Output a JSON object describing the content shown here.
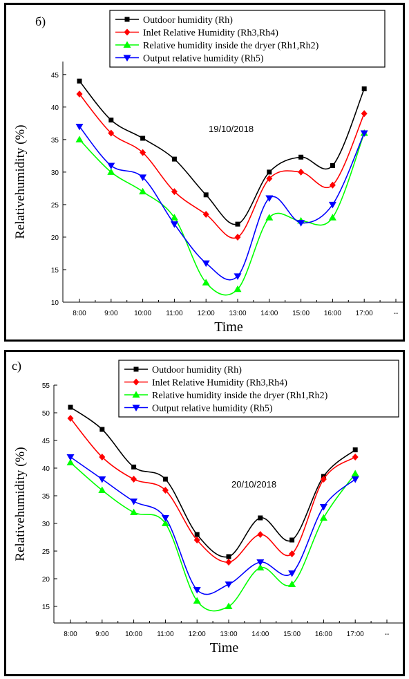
{
  "panels": [
    {
      "panel_label": "б)",
      "annotation": "19/10/2018",
      "ylabel": "Relativehumidity (%)",
      "xlabel": "Time",
      "ylim": [
        10,
        47
      ],
      "yticks": [
        10,
        15,
        20,
        25,
        30,
        35,
        40,
        45
      ],
      "xticks": [
        "8:00",
        "9:00",
        "10:00",
        "11:00",
        "12:00",
        "13:00",
        "14:00",
        "15:00",
        "16:00",
        "17:00",
        "--"
      ]
    },
    {
      "panel_label": "c)",
      "annotation": "20/10/2018",
      "ylabel": "Relativehumidity (%)",
      "xlabel": "Time",
      "ylim": [
        12,
        55
      ],
      "yticks": [
        15,
        20,
        25,
        30,
        35,
        40,
        45,
        50,
        55
      ],
      "xticks": [
        "8:00",
        "9:00",
        "10:00",
        "11:00",
        "12:00",
        "13:00",
        "14:00",
        "15:00",
        "16:00",
        "17:00",
        "--"
      ]
    }
  ],
  "legend": [
    {
      "name": "Outdoor humidity (Rh)",
      "color": "#000000",
      "marker": "square"
    },
    {
      "name": "Inlet Relative Humidity (Rh3,Rh4)",
      "color": "#ff0000",
      "marker": "diamond"
    },
    {
      "name": "Relative humidity inside the dryer (Rh1,Rh2)",
      "color": "#00ff00",
      "marker": "triangle-up"
    },
    {
      "name": "Output relative humidity (Rh5)",
      "color": "#0000ff",
      "marker": "triangle-down"
    }
  ],
  "chart_data": [
    {
      "type": "line",
      "title": "19/10/2018",
      "xlabel": "Time",
      "ylabel": "Relativehumidity (%)",
      "categories": [
        "8:00",
        "9:00",
        "10:00",
        "11:00",
        "12:00",
        "13:00",
        "14:00",
        "15:00",
        "16:00",
        "17:00"
      ],
      "ylim": [
        10,
        47
      ],
      "legend_position": "top",
      "series": [
        {
          "name": "Outdoor humidity (Rh)",
          "values": [
            44,
            38,
            35.2,
            32,
            26.5,
            22,
            30,
            32.3,
            31,
            42.8
          ]
        },
        {
          "name": "Inlet Relative Humidity (Rh3,Rh4)",
          "values": [
            42,
            36,
            33,
            27,
            23.5,
            20,
            29,
            30,
            28,
            39
          ]
        },
        {
          "name": "Relative humidity inside the dryer (Rh1,Rh2)",
          "values": [
            35,
            30,
            27,
            23,
            13,
            12,
            23,
            22.5,
            23,
            36
          ]
        },
        {
          "name": "Output relative humidity (Rh5)",
          "values": [
            37,
            31,
            29.2,
            22,
            16,
            14,
            26,
            22.2,
            25,
            36
          ]
        }
      ]
    },
    {
      "type": "line",
      "title": "20/10/2018",
      "xlabel": "Time",
      "ylabel": "Relativehumidity (%)",
      "categories": [
        "8:00",
        "9:00",
        "10:00",
        "11:00",
        "12:00",
        "13:00",
        "14:00",
        "15:00",
        "16:00",
        "17:00"
      ],
      "ylim": [
        12,
        55
      ],
      "legend_position": "top",
      "series": [
        {
          "name": "Outdoor humidity (Rh)",
          "values": [
            51,
            47,
            40.2,
            38,
            28,
            24,
            31,
            27,
            38.5,
            43.3
          ]
        },
        {
          "name": "Inlet Relative Humidity (Rh3,Rh4)",
          "values": [
            49,
            42,
            38,
            36,
            27,
            23,
            28,
            24.5,
            38,
            42
          ]
        },
        {
          "name": "Relative humidity inside the dryer (Rh1,Rh2)",
          "values": [
            41,
            36,
            32,
            30,
            16,
            15,
            22,
            19,
            31,
            39
          ]
        },
        {
          "name": "Output relative humidity (Rh5)",
          "values": [
            42,
            38,
            34,
            31,
            18,
            19,
            23,
            21,
            33,
            38
          ]
        }
      ]
    }
  ]
}
